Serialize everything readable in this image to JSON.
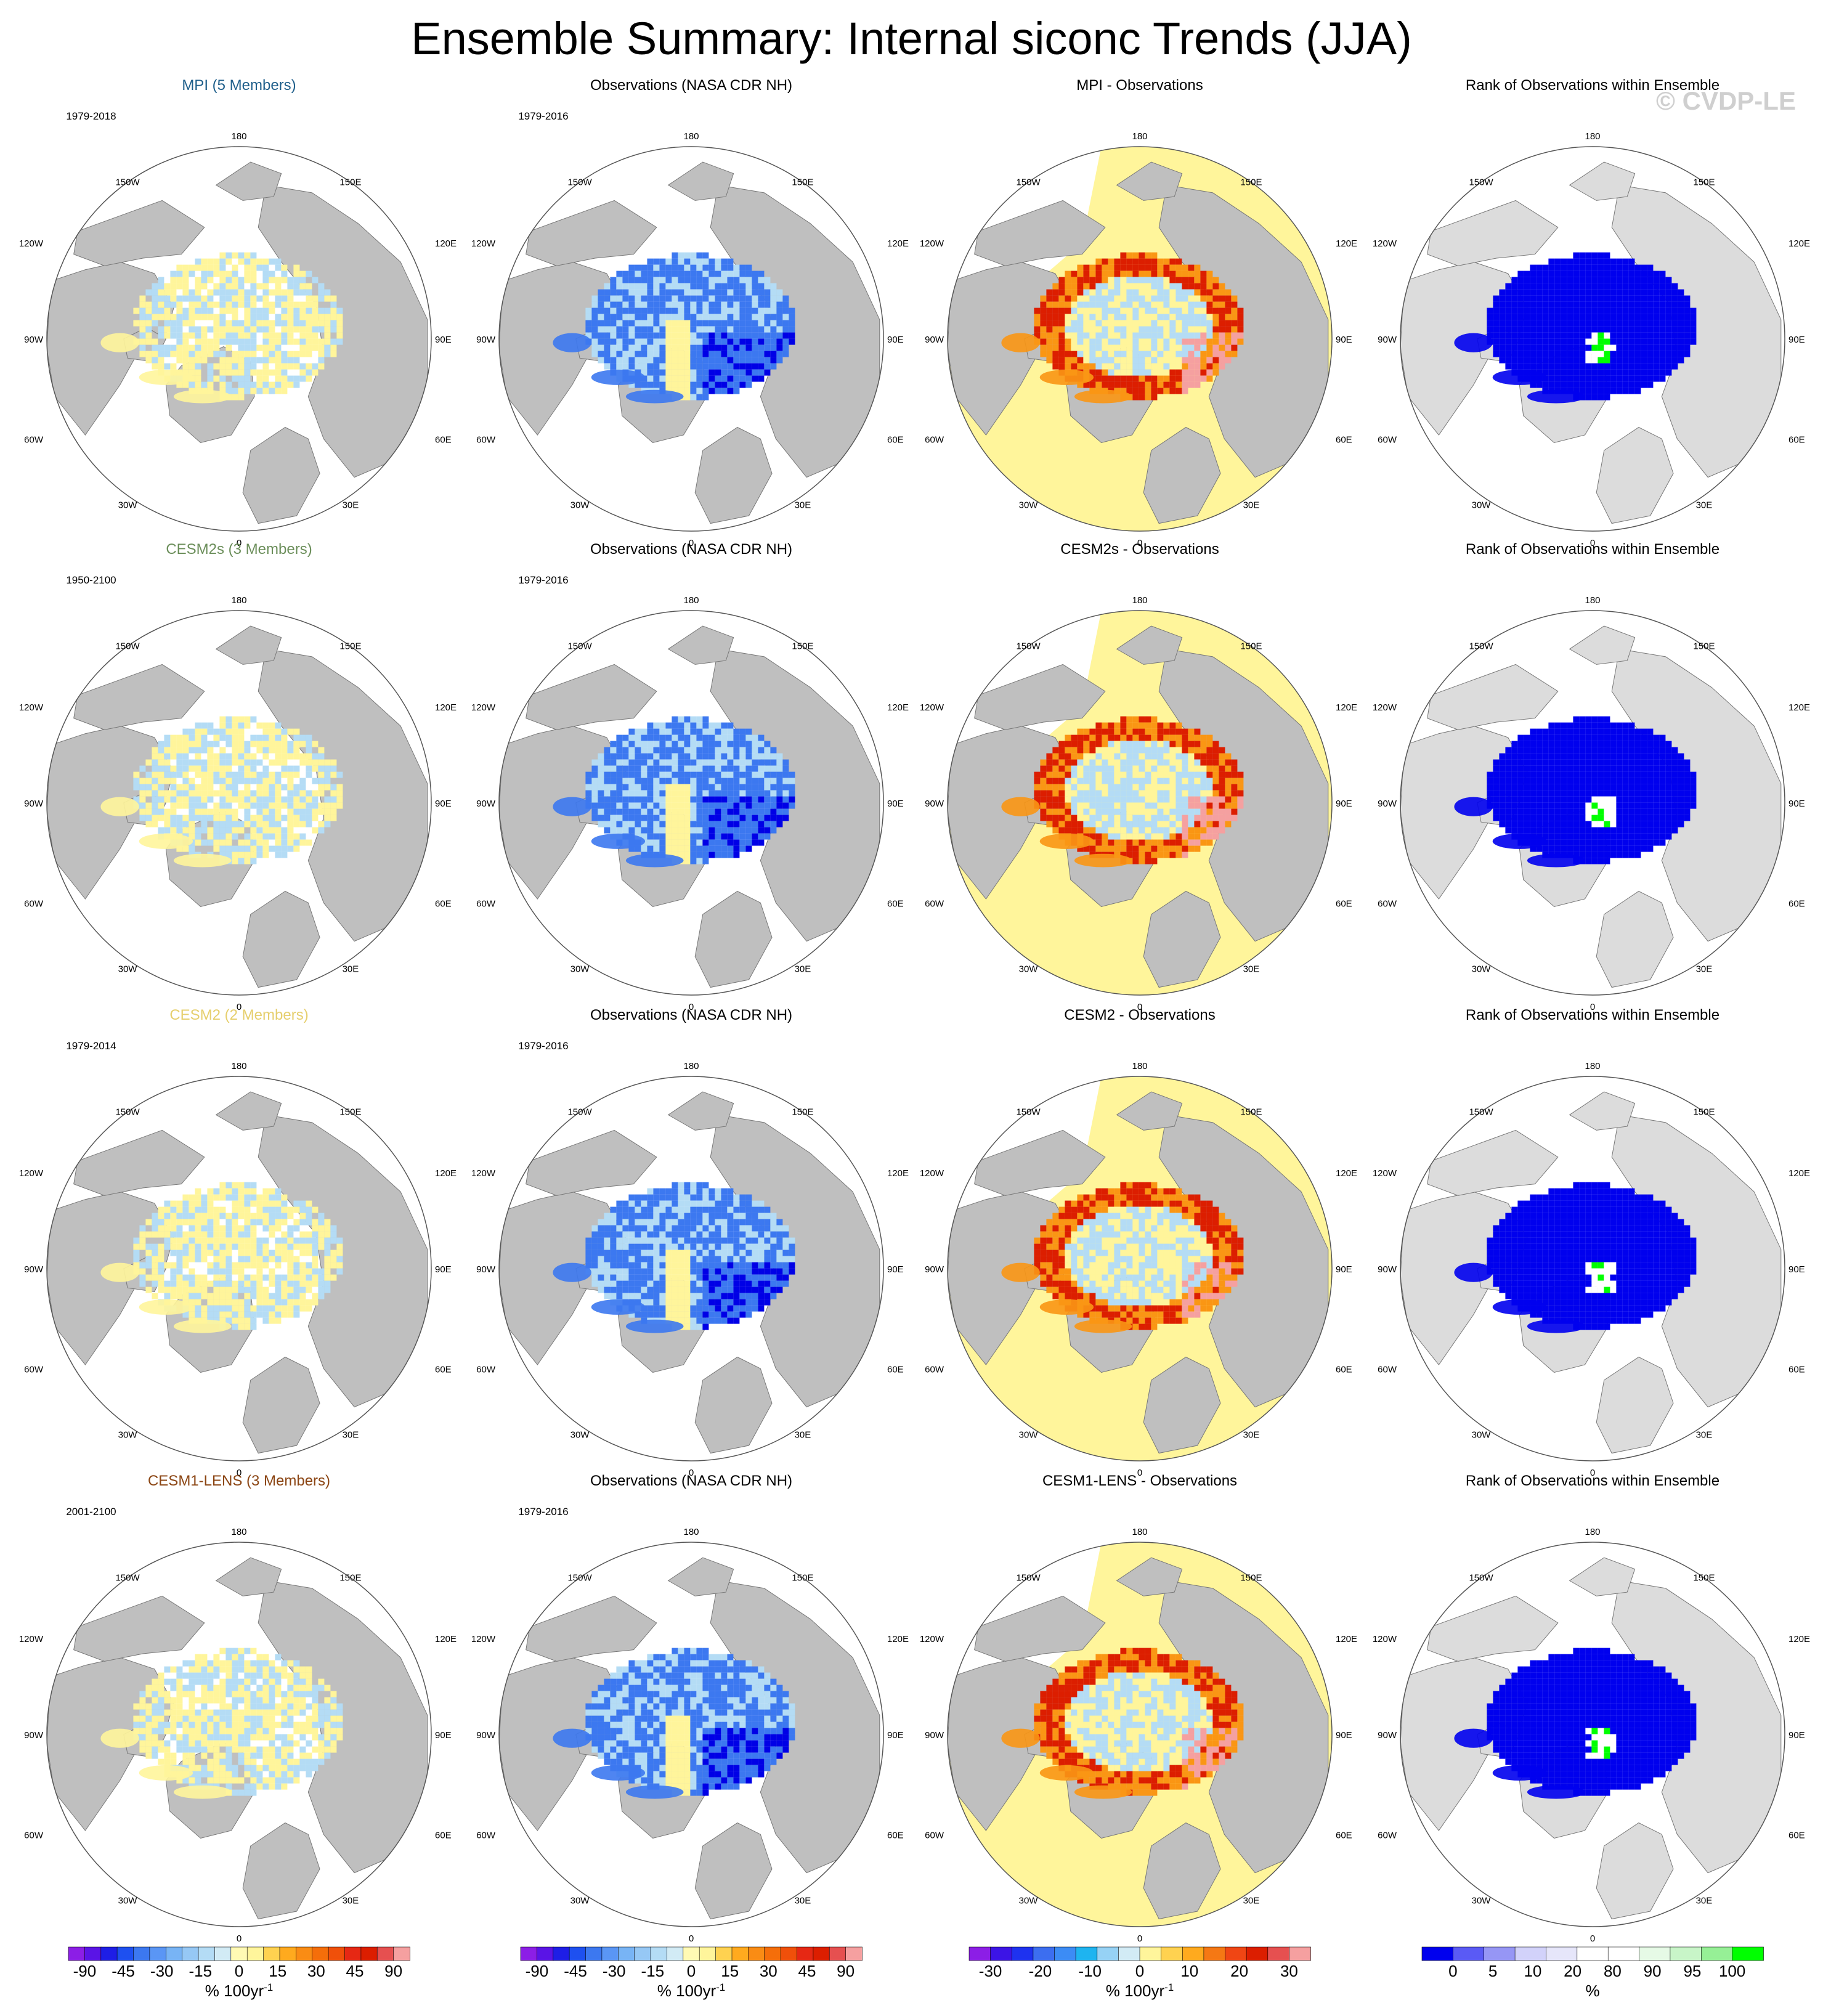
{
  "title": "Ensemble Summary: Internal siconc Trends (JJA)",
  "watermark": "© CVDP-LE",
  "colors": {
    "land": "#bfbfbf",
    "rank_land": "#dcdcdc",
    "ocean": "#ffffff",
    "neg_strong": "#0000e6",
    "neg_mid": "#3c78f0",
    "neg_light": "#b4dcf5",
    "pos_light": "#fff59b",
    "pos_mid": "#fa9614",
    "pos_strong": "#dc1e00",
    "pos_pink": "#f5a0a0",
    "rank_blue": "#0000ee",
    "rank_green": "#00ff00",
    "rank_white": "#ffffff"
  },
  "map_labels": {
    "top": "180",
    "bottom": "0",
    "upper_left": "150W",
    "upper_right": "150E",
    "mid_left_hi": "120W",
    "mid_right_hi": "120E",
    "left": "90W",
    "right": "90E",
    "mid_left_lo": "60W",
    "mid_right_lo": "60E",
    "lower_left": "30W",
    "lower_right": "30E"
  },
  "rows": [
    {
      "model": {
        "title": "MPI (5 Members)",
        "title_color": "#1f5f8b",
        "years": "1979-2018"
      },
      "obs": {
        "title": "Observations (NASA CDR NH)",
        "years": "1979-2016"
      },
      "diff": {
        "title": "MPI - Observations"
      },
      "rank": {
        "title": "Rank of Observations within Ensemble"
      }
    },
    {
      "model": {
        "title": "CESM2s (3 Members)",
        "title_color": "#6b8e5a",
        "years": "1950-2100"
      },
      "obs": {
        "title": "Observations (NASA CDR NH)",
        "years": "1979-2016"
      },
      "diff": {
        "title": "CESM2s - Observations"
      },
      "rank": {
        "title": "Rank of Observations within Ensemble"
      }
    },
    {
      "model": {
        "title": "CESM2 (2 Members)",
        "title_color": "#e6cf6e",
        "years": "1979-2014"
      },
      "obs": {
        "title": "Observations (NASA CDR NH)",
        "years": "1979-2016"
      },
      "diff": {
        "title": "CESM2 - Observations"
      },
      "rank": {
        "title": "Rank of Observations within Ensemble"
      }
    },
    {
      "model": {
        "title": "CESM1-LENS (3 Members)",
        "title_color": "#8b4513",
        "years": "2001-2100"
      },
      "obs": {
        "title": "Observations (NASA CDR NH)",
        "years": "1979-2016"
      },
      "diff": {
        "title": "CESM1-LENS - Observations"
      },
      "rank": {
        "title": "Rank of Observations within Ensemble"
      }
    }
  ],
  "colorbars": [
    {
      "colors": [
        "#8c1ee6",
        "#5a14e6",
        "#1e1ee6",
        "#1e50f0",
        "#3c78f0",
        "#5a96f5",
        "#78b4f5",
        "#96c8f5",
        "#b4dcf5",
        "#d2ebf5",
        "#fffab4",
        "#fff59b",
        "#ffd250",
        "#ffaa1e",
        "#fa8c14",
        "#f56e0a",
        "#f0500a",
        "#e62814",
        "#dc1e00",
        "#e65050",
        "#f5a0a0"
      ],
      "labels": [
        "-90",
        "-45",
        "-30",
        "-15",
        "0",
        "15",
        "30",
        "45",
        "90"
      ],
      "title": "% 100yr",
      "title_sup": "-1"
    },
    {
      "colors": [
        "#8c1ee6",
        "#5a14e6",
        "#1e1ee6",
        "#1e50f0",
        "#3c78f0",
        "#5a96f5",
        "#78b4f5",
        "#96c8f5",
        "#b4dcf5",
        "#d2ebf5",
        "#fffab4",
        "#fff59b",
        "#ffd250",
        "#ffaa1e",
        "#fa8c14",
        "#f56e0a",
        "#f0500a",
        "#e62814",
        "#dc1e00",
        "#e65050",
        "#f5a0a0"
      ],
      "labels": [
        "-90",
        "-45",
        "-30",
        "-15",
        "0",
        "15",
        "30",
        "45",
        "90"
      ],
      "title": "% 100yr",
      "title_sup": "-1"
    },
    {
      "colors": [
        "#8c1ee6",
        "#3c14e6",
        "#1e32f0",
        "#3c6ef0",
        "#3c8cf5",
        "#1eb4f0",
        "#96d2f5",
        "#d2ebf5",
        "#fff59b",
        "#ffd250",
        "#ffaa1e",
        "#f57814",
        "#f04614",
        "#dc1e00",
        "#e65050",
        "#f5a0a0"
      ],
      "labels": [
        "-30",
        "-20",
        "-10",
        "0",
        "10",
        "20",
        "30"
      ],
      "title": "% 100yr",
      "title_sup": "-1"
    },
    {
      "colors": [
        "#0000ee",
        "#5a5af5",
        "#9696f5",
        "#d2d2fa",
        "#e6e6fa",
        "#ffffff",
        "#ffffff",
        "#e6fae6",
        "#c8f5c8",
        "#96f096",
        "#00ff00"
      ],
      "labels": [
        "0",
        "5",
        "10",
        "20",
        "80",
        "90",
        "95",
        "100"
      ],
      "title": "%",
      "title_sup": ""
    }
  ]
}
